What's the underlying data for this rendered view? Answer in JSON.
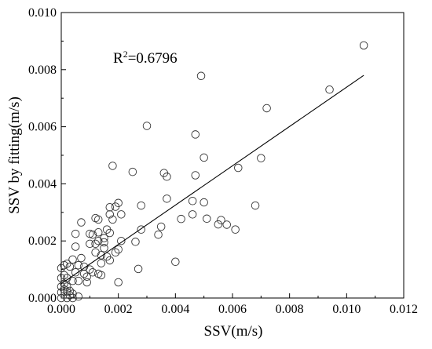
{
  "chart_data": {
    "type": "scatter",
    "title": "",
    "xlabel": "SSV(m/s)",
    "ylabel": "SSV by fitting(m/s)",
    "xlim": [
      0,
      0.012
    ],
    "ylim": [
      0,
      0.01
    ],
    "xticks": [
      "0.000",
      "0.002",
      "0.004",
      "0.006",
      "0.008",
      "0.010",
      "0.012"
    ],
    "yticks": [
      "0.000",
      "0.002",
      "0.004",
      "0.006",
      "0.008",
      "0.010"
    ],
    "annotation": {
      "prefix": "R",
      "sup": "2",
      "value": "=0.6796"
    },
    "grid": false,
    "colors": {
      "marker_stroke": "#333333",
      "line": "#000000",
      "axis": "#000000"
    },
    "fit_line": {
      "x": [
        0.0,
        0.0106
      ],
      "y": [
        0.0005,
        0.0078
      ]
    },
    "series": [
      {
        "marker": "open-circle",
        "points": [
          [
            0.0106,
            0.00885
          ],
          [
            0.0094,
            0.0073
          ],
          [
            0.0072,
            0.00665
          ],
          [
            0.0049,
            0.00778
          ],
          [
            0.003,
            0.00603
          ],
          [
            0.0047,
            0.00573
          ],
          [
            0.005,
            0.00492
          ],
          [
            0.007,
            0.0049
          ],
          [
            0.0062,
            0.00456
          ],
          [
            0.0018,
            0.00463
          ],
          [
            0.0025,
            0.00442
          ],
          [
            0.0036,
            0.00438
          ],
          [
            0.0037,
            0.00425
          ],
          [
            0.0047,
            0.0043
          ],
          [
            0.0037,
            0.00348
          ],
          [
            0.0046,
            0.0034
          ],
          [
            0.005,
            0.00335
          ],
          [
            0.0068,
            0.00324
          ],
          [
            0.0028,
            0.00324
          ],
          [
            0.002,
            0.00333
          ],
          [
            0.0017,
            0.00318
          ],
          [
            0.0035,
            0.0025
          ],
          [
            0.0046,
            0.00293
          ],
          [
            0.0051,
            0.00278
          ],
          [
            0.0055,
            0.00258
          ],
          [
            0.0056,
            0.00273
          ],
          [
            0.0058,
            0.00257
          ],
          [
            0.0061,
            0.0024
          ],
          [
            0.0042,
            0.00277
          ],
          [
            0.0034,
            0.00222
          ],
          [
            0.0028,
            0.0024
          ],
          [
            0.004,
            0.00127
          ],
          [
            0.0026,
            0.00197
          ],
          [
            0.0027,
            0.00102
          ],
          [
            0.002,
            0.00055
          ],
          [
            0.0019,
            0.0016
          ],
          [
            0.002,
            0.0017
          ],
          [
            0.0021,
            0.002
          ],
          [
            0.0021,
            0.00293
          ],
          [
            0.0019,
            0.0032
          ],
          [
            0.0017,
            0.00293
          ],
          [
            0.0018,
            0.00275
          ],
          [
            0.0017,
            0.00228
          ],
          [
            0.0016,
            0.00145
          ],
          [
            0.0017,
            0.00132
          ],
          [
            0.0015,
            0.0021
          ],
          [
            0.0015,
            0.00175
          ],
          [
            0.0014,
            0.0015
          ],
          [
            0.0014,
            0.00122
          ],
          [
            0.0013,
            0.0023
          ],
          [
            0.0013,
            0.00275
          ],
          [
            0.0012,
            0.0028
          ],
          [
            0.0011,
            0.00222
          ],
          [
            0.0012,
            0.0019
          ],
          [
            0.0013,
            0.00085
          ],
          [
            0.001,
            0.0019
          ],
          [
            0.001,
            0.001
          ],
          [
            0.0009,
            0.00075
          ],
          [
            0.0009,
            0.00055
          ],
          [
            0.0008,
            0.0011
          ],
          [
            0.0007,
            0.00265
          ],
          [
            0.0007,
            0.0014
          ],
          [
            0.0006,
            0.00115
          ],
          [
            0.0006,
            0.0006
          ],
          [
            0.0005,
            0.0018
          ],
          [
            0.0005,
            0.00225
          ],
          [
            0.0005,
            0.0009
          ],
          [
            0.0004,
            0.0006
          ],
          [
            0.0004,
            0.00015
          ],
          [
            0.0004,
            0.00135
          ],
          [
            0.0003,
            0.0011
          ],
          [
            0.0003,
            0.00025
          ],
          [
            0.0003,
            0.0001
          ],
          [
            0.0002,
            0.0007
          ],
          [
            0.0002,
            0.0004
          ],
          [
            0.0002,
            0.0012
          ],
          [
            0.0002,
            0.0
          ],
          [
            0.0001,
            0.0008
          ],
          [
            0.0001,
            0.0005
          ],
          [
            0.0001,
            0.0003
          ],
          [
            0.0001,
            0.00115
          ],
          [
            0.0,
            0.00105
          ],
          [
            0.0,
            0.0007
          ],
          [
            0.0,
            0.0004
          ],
          [
            0.0,
            0.0002
          ],
          [
            0.0,
            0.0
          ],
          [
            0.0006,
            5e-05
          ],
          [
            0.0004,
            0.0
          ],
          [
            0.0002,
            0.00022
          ],
          [
            0.0008,
            0.00085
          ],
          [
            0.0011,
            0.0009
          ],
          [
            0.0015,
            0.00195
          ],
          [
            0.0016,
            0.0024
          ],
          [
            0.0013,
            0.002
          ],
          [
            0.0014,
            0.0008
          ],
          [
            0.001,
            0.00225
          ],
          [
            0.0012,
            0.0016
          ]
        ]
      }
    ]
  }
}
